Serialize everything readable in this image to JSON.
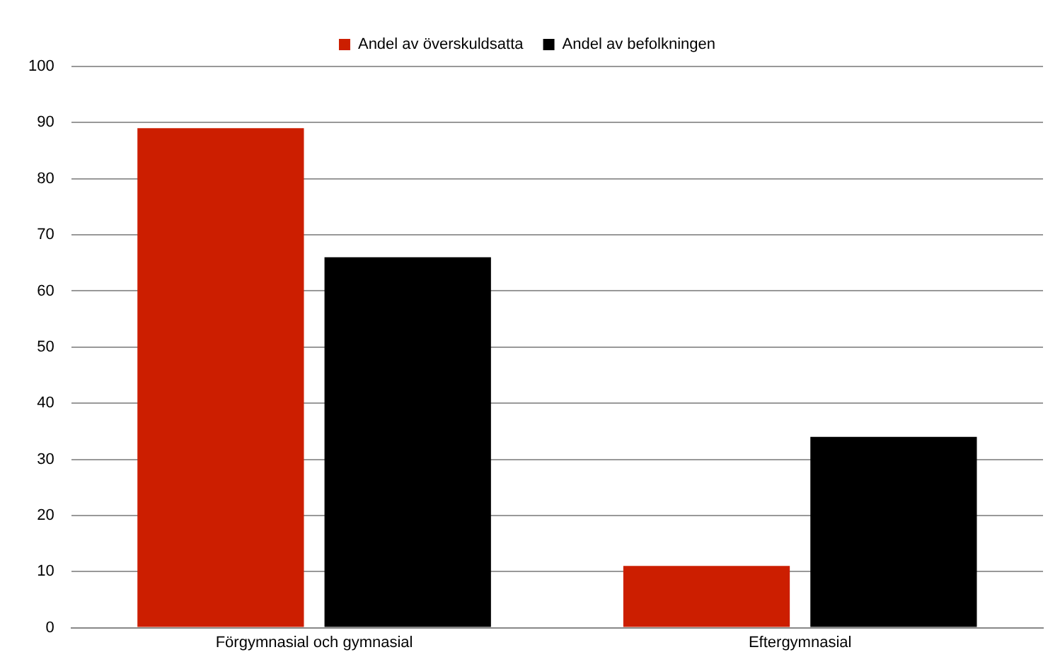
{
  "chart_data": {
    "type": "bar",
    "categories": [
      "Förgymnasial och gymnasial",
      "Eftergymnasial"
    ],
    "series": [
      {
        "name": "Andel av överskuldsatta",
        "color": "#cc1e00",
        "values": [
          89,
          11
        ]
      },
      {
        "name": "Andel av befolkningen",
        "color": "#000000",
        "values": [
          66,
          34
        ]
      }
    ],
    "ylim": [
      0,
      100
    ],
    "yticks": [
      0,
      10,
      20,
      30,
      40,
      50,
      60,
      70,
      80,
      90,
      100
    ],
    "grid": "y",
    "legend": "top"
  }
}
